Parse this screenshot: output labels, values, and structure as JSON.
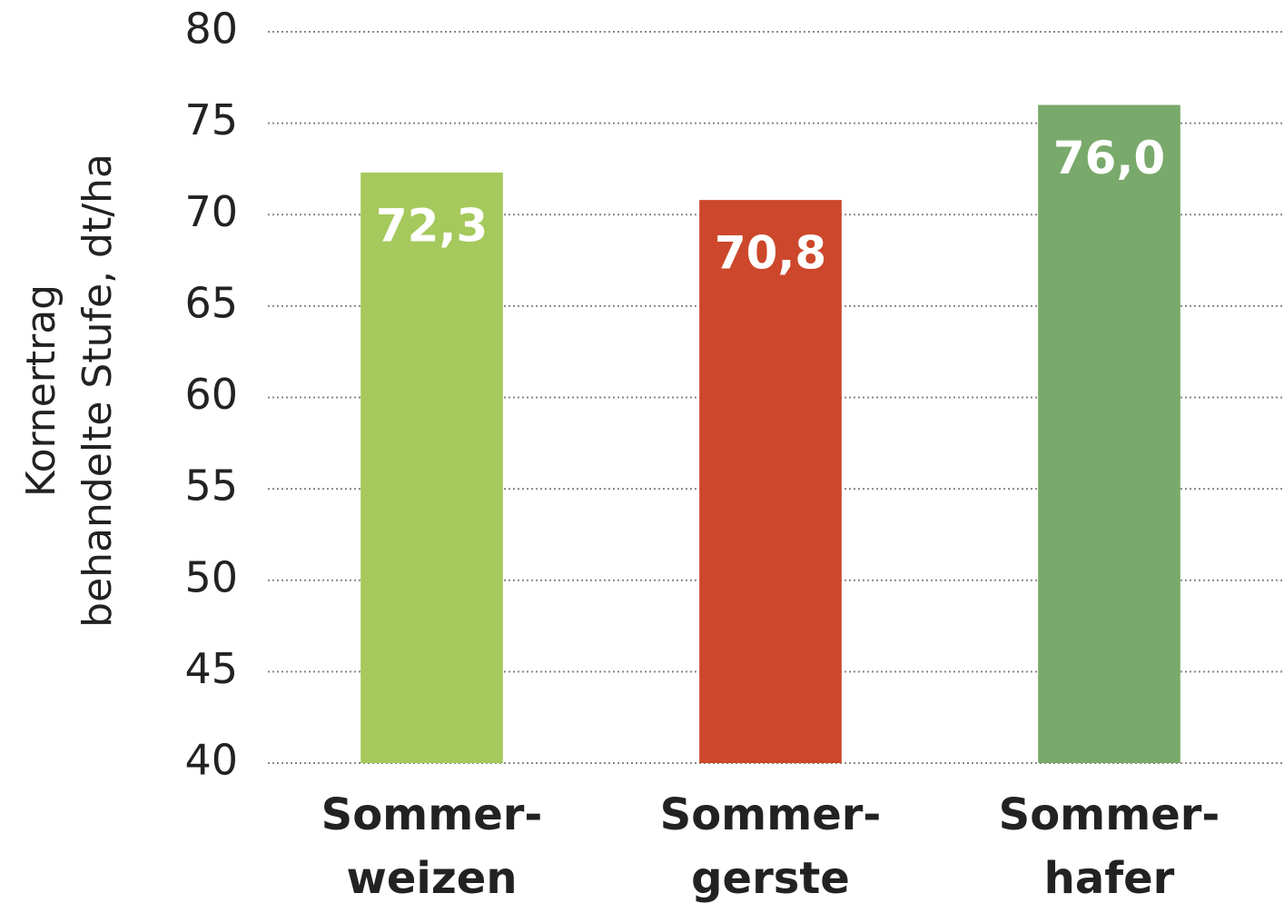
{
  "chart_data": {
    "type": "bar",
    "ylabel": [
      "Kornertrag",
      "behandelte Stufe, dt/ha"
    ],
    "categories": [
      "Sommer-\nweizen",
      "Sommer-\ngerste",
      "Sommer-\nhafer"
    ],
    "values": [
      72.3,
      70.8,
      76.0
    ],
    "value_labels": [
      "72,3",
      "70,8",
      "76,0"
    ],
    "colors": [
      "#a5c95c",
      "#cc472b",
      "#79a96b"
    ],
    "ylim": [
      40,
      80
    ],
    "yticks": [
      40,
      45,
      50,
      55,
      60,
      65,
      70,
      75,
      80
    ],
    "grid": true
  }
}
